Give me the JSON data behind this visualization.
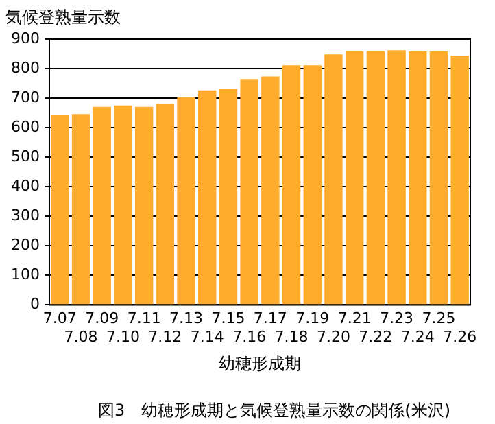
{
  "chart_data": {
    "type": "bar",
    "title": "気候登熟量示数",
    "xlabel": "幼穂形成期",
    "categories": [
      "7.07",
      "7.08",
      "7.09",
      "7.10",
      "7.11",
      "7.12",
      "7.13",
      "7.14",
      "7.15",
      "7.16",
      "7.17",
      "7.18",
      "7.19",
      "7.20",
      "7.21",
      "7.22",
      "7.23",
      "7.24",
      "7.25",
      "7.26"
    ],
    "values": [
      642,
      646,
      670,
      675,
      670,
      680,
      703,
      726,
      731,
      764,
      773,
      811,
      811,
      848,
      858,
      858,
      862,
      858,
      858,
      844
    ],
    "color": "#ffab2b",
    "ylim": [
      0,
      900
    ],
    "yticks": [
      0,
      100,
      200,
      300,
      400,
      500,
      600,
      700,
      800,
      900
    ],
    "grid": "y",
    "legend": false,
    "annotations": [
      "図3　幼穂形成期と気候登熟量示数の関係(米沢)"
    ]
  }
}
